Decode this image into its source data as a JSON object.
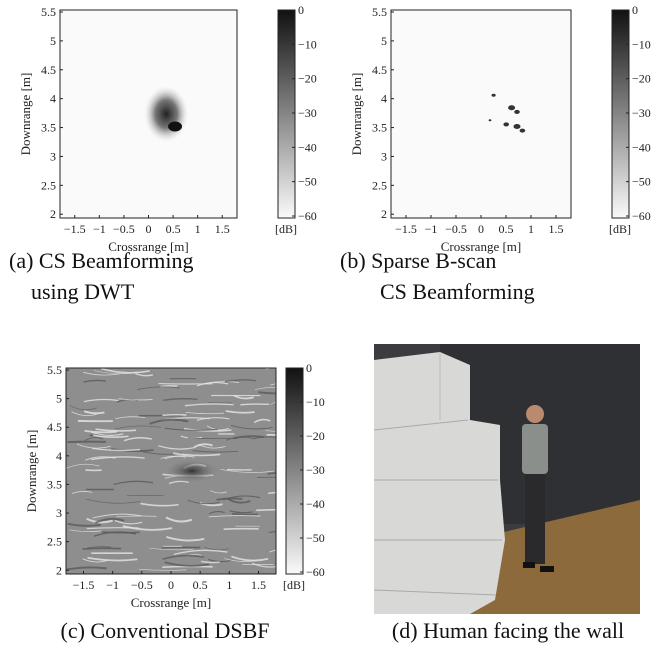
{
  "panels": [
    {
      "caption": [
        "(a) CS Beamforming",
        "using DWT"
      ],
      "x_label": "Crossrange [m]",
      "y_label": "Downrange [m]",
      "x_ticks": [
        "−1.5",
        "−1",
        "−0.5",
        "0",
        "0.5",
        "1",
        "1.5"
      ],
      "y_ticks": [
        "5.5",
        "5",
        "4.5",
        "4",
        "3.5",
        "3",
        "2.5",
        "2"
      ],
      "colorbar_ticks": [
        "0",
        "−10",
        "−20",
        "−30",
        "−40",
        "−50",
        "−60"
      ],
      "colorbar_unit": "[dB]"
    },
    {
      "caption": [
        "(b) Sparse B-scan",
        "CS Beamforming"
      ],
      "x_label": "Crossrange [m]",
      "y_label": "Downrange [m]",
      "x_ticks": [
        "−1.5",
        "−1",
        "−0.5",
        "0",
        "0.5",
        "1",
        "1.5"
      ],
      "y_ticks": [
        "5.5",
        "5",
        "4.5",
        "4",
        "3.5",
        "3",
        "2.5",
        "2"
      ],
      "colorbar_ticks": [
        "0",
        "−10",
        "−20",
        "−30",
        "−40",
        "−50",
        "−60"
      ],
      "colorbar_unit": "[dB]"
    },
    {
      "caption": [
        "(c) Conventional DSBF"
      ],
      "x_label": "Crossrange [m]",
      "y_label": "Downrange [m]",
      "x_ticks": [
        "−1.5",
        "−1",
        "−0.5",
        "0",
        "0.5",
        "1",
        "1.5"
      ],
      "y_ticks": [
        "5.5",
        "5",
        "4.5",
        "4",
        "3.5",
        "3",
        "2.5",
        "2"
      ],
      "colorbar_ticks": [
        "0",
        "−10",
        "−20",
        "−30",
        "−40",
        "−50",
        "−60"
      ],
      "colorbar_unit": "[dB]"
    },
    {
      "caption": [
        "(d) Human facing the wall"
      ]
    }
  ]
}
